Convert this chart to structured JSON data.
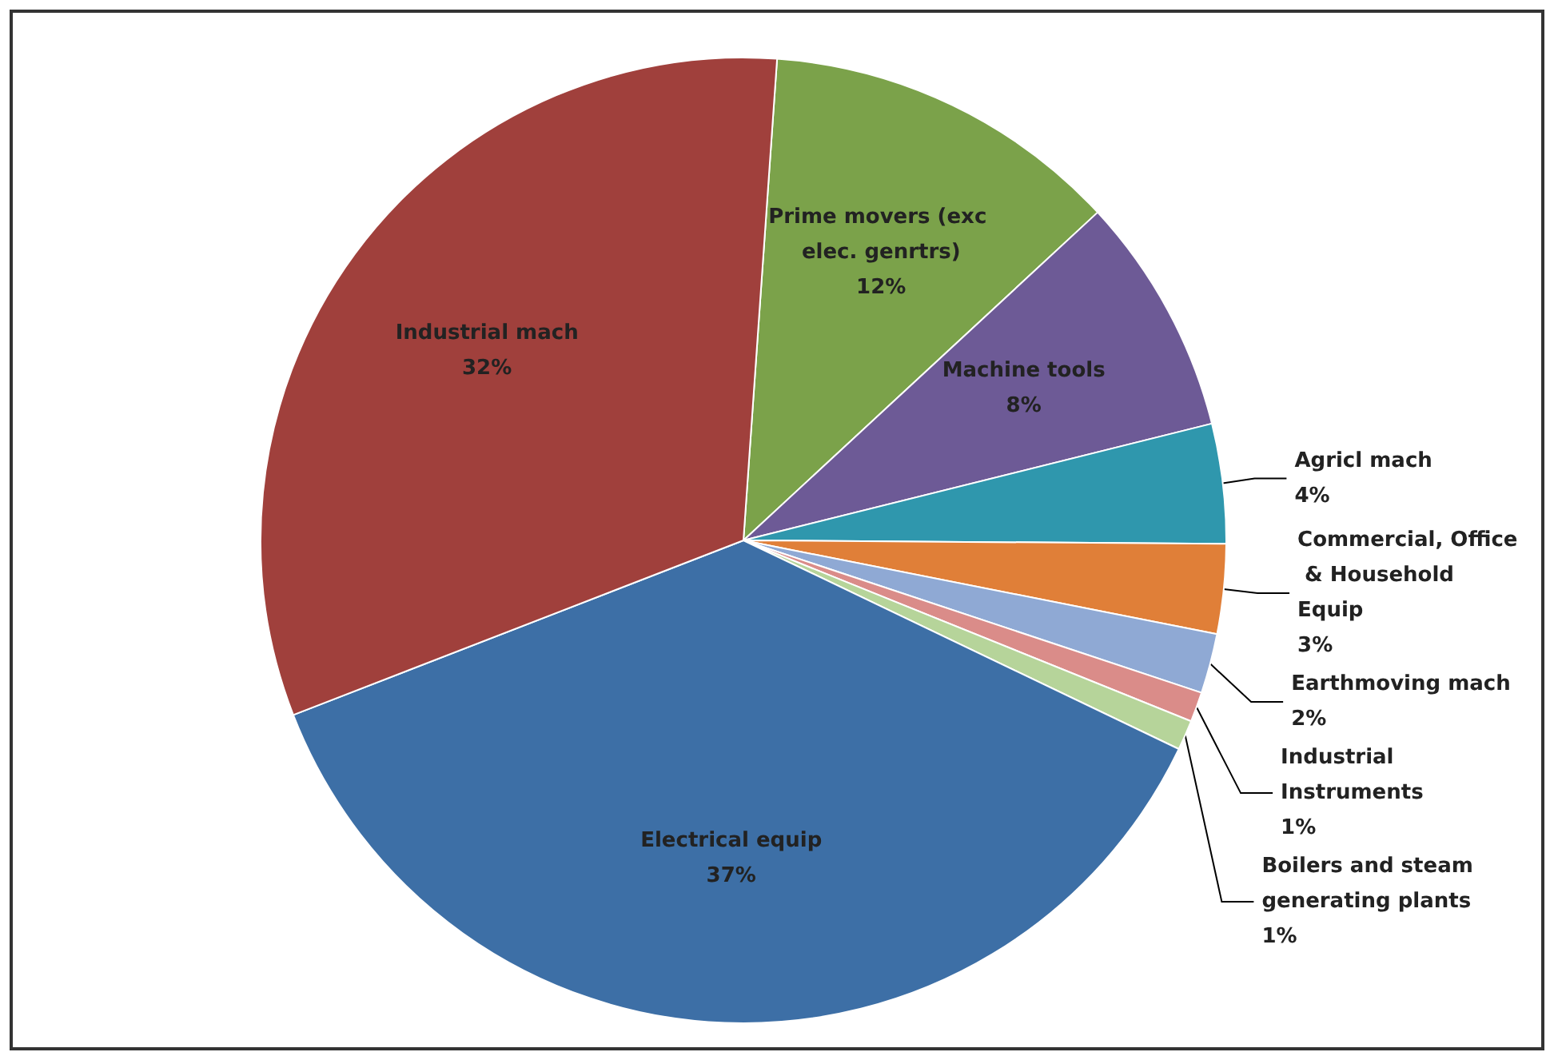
{
  "chart_data": {
    "type": "pie",
    "categories": [
      "Prime movers (exc elec. genrtrs)",
      "Machine tools",
      "Agricl mach",
      "Commercial, Office & Household Equip",
      "Earthmoving mach",
      "Industrial Instruments",
      "Boilers and steam generating plants",
      "Electrical equip",
      "Industrial mach"
    ],
    "values": [
      12,
      8,
      4,
      3,
      2,
      1,
      1,
      37,
      32
    ],
    "colors": [
      "#7ba24a",
      "#6d5a96",
      "#2f97ad",
      "#e07f38",
      "#8fa9d4",
      "#da8c89",
      "#b6d49a",
      "#3d6fa6",
      "#a0403c"
    ],
    "value_labels": [
      "12%",
      "8%",
      "4%",
      "3%",
      "2%",
      "1%",
      "1%",
      "37%",
      "32%"
    ],
    "legend": false
  }
}
